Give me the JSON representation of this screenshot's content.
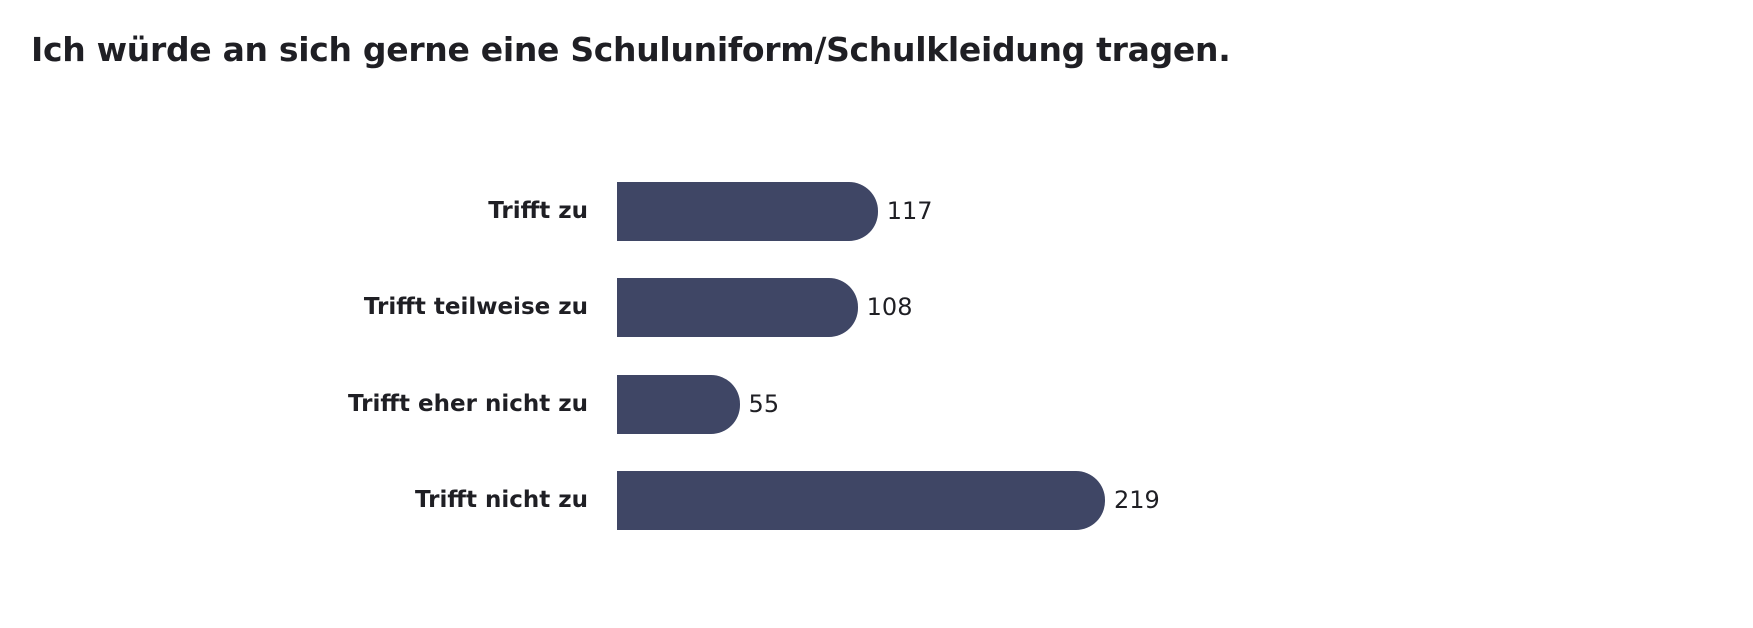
{
  "chart_data": {
    "type": "bar",
    "orientation": "horizontal",
    "title": "Ich würde an sich gerne eine Schuluniform/Schulkleidung tragen.",
    "categories": [
      "Trifft zu",
      "Trifft teilweise zu",
      "Trifft eher nicht zu",
      "Trifft nicht zu"
    ],
    "values": [
      117,
      108,
      55,
      219
    ],
    "xlim": [
      0,
      219
    ],
    "grid": false,
    "colors": {
      "bar": "#3f4665"
    }
  }
}
